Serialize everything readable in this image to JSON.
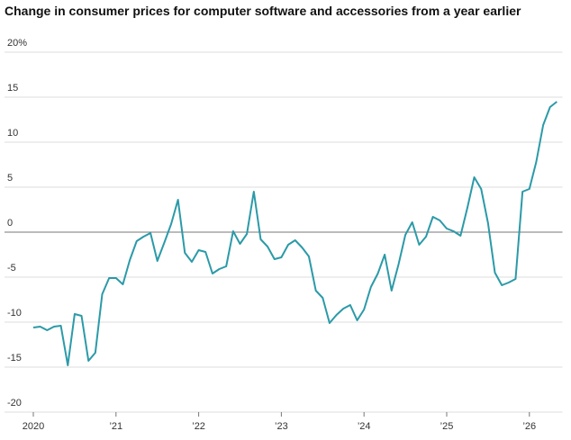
{
  "chart_data": {
    "type": "line",
    "title": "Change in consumer prices for computer software and accessories from a year earlier",
    "x": [
      2020,
      2020.083,
      2020.167,
      2020.25,
      2020.333,
      2020.417,
      2020.5,
      2020.583,
      2020.667,
      2020.75,
      2020.833,
      2020.917,
      2021,
      2021.083,
      2021.167,
      2021.25,
      2021.333,
      2021.417,
      2021.5,
      2021.583,
      2021.667,
      2021.75,
      2021.833,
      2021.917,
      2022,
      2022.083,
      2022.167,
      2022.25,
      2022.333,
      2022.417,
      2022.5,
      2022.583,
      2022.667,
      2022.75,
      2022.833,
      2022.917,
      2023,
      2023.083,
      2023.167,
      2023.25,
      2023.333,
      2023.417,
      2023.5,
      2023.583,
      2023.667,
      2023.75,
      2023.833,
      2023.917,
      2024,
      2024.083,
      2024.167,
      2024.25,
      2024.333,
      2024.417,
      2024.5,
      2024.583,
      2024.667,
      2024.75,
      2024.833,
      2024.917,
      2025,
      2025.083,
      2025.167,
      2025.25,
      2025.333,
      2025.417,
      2025.5,
      2025.583,
      2025.667,
      2025.75,
      2025.833,
      2025.917,
      2026,
      2026.083,
      2026.167,
      2026.25,
      2026.333
    ],
    "series": [
      {
        "color": "#2b9aa8",
        "values": [
          -10.6,
          -10.5,
          -10.9,
          -10.5,
          -10.4,
          -14.8,
          -9.1,
          -9.3,
          -14.3,
          -13.4,
          -6.9,
          -5.1,
          -5.1,
          -5.8,
          -3.1,
          -1.0,
          -0.5,
          -0.1,
          -3.2,
          -1.2,
          0.9,
          3.6,
          -2.3,
          -3.3,
          -2.0,
          -2.2,
          -4.6,
          -4.1,
          -3.8,
          0.1,
          -1.3,
          -0.2,
          4.5,
          -0.8,
          -1.6,
          -3.0,
          -2.8,
          -1.4,
          -0.9,
          -1.7,
          -2.7,
          -6.5,
          -7.3,
          -10.1,
          -9.2,
          -8.5,
          -8.1,
          -9.8,
          -8.6,
          -6.1,
          -4.6,
          -2.5,
          -6.5,
          -3.6,
          -0.3,
          1.1,
          -1.4,
          -0.5,
          1.7,
          1.3,
          0.4,
          0.1,
          -0.4,
          2.7,
          6.1,
          4.8,
          1.0,
          -4.5,
          -5.9,
          -5.6,
          -5.2,
          4.5,
          4.8,
          7.8,
          11.9,
          13.9,
          14.5
        ]
      }
    ],
    "xlim": [
      2020,
      2026.4
    ],
    "xticks": [
      2020,
      {
        "value": 2021,
        "label": "’21"
      },
      {
        "value": 2022,
        "label": "’22"
      },
      {
        "value": 2023,
        "label": "’23"
      },
      {
        "value": 2024,
        "label": "’24"
      },
      {
        "value": 2025,
        "label": "’25"
      },
      {
        "value": 2026,
        "label": "’26"
      }
    ],
    "ylim": [
      -20,
      20
    ],
    "yticks": [
      {
        "value": 20,
        "label": "20%"
      },
      15,
      10,
      5,
      0,
      -5,
      -10,
      -15,
      -20
    ],
    "grid": true
  }
}
